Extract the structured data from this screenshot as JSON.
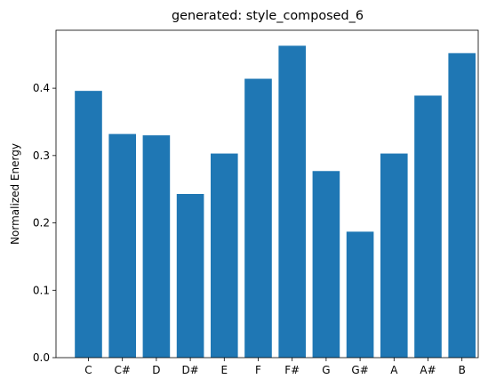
{
  "chart_data": {
    "type": "bar",
    "title": "generated: style_composed_6",
    "xlabel": "",
    "ylabel": "Normalized Energy",
    "categories": [
      "C",
      "C#",
      "D",
      "D#",
      "E",
      "F",
      "F#",
      "G",
      "G#",
      "A",
      "A#",
      "B"
    ],
    "values": [
      0.396,
      0.332,
      0.33,
      0.243,
      0.303,
      0.414,
      0.463,
      0.277,
      0.187,
      0.303,
      0.389,
      0.452
    ],
    "ylim": [
      0,
      0.486
    ],
    "yticks": [
      "0.0",
      "0.1",
      "0.2",
      "0.3",
      "0.4"
    ],
    "grid": false,
    "bar_color": "#1f77b4"
  }
}
